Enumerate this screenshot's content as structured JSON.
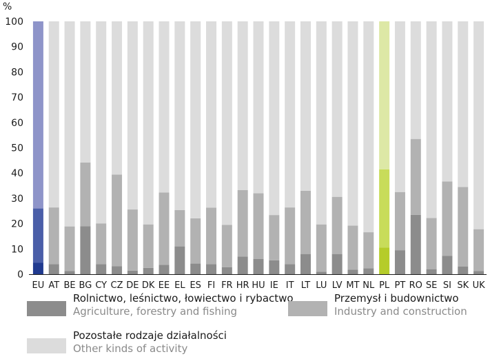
{
  "chart_data": {
    "type": "bar",
    "stacked": true,
    "unit_label": "%",
    "ylim": [
      0,
      100
    ],
    "yticks": [
      0,
      10,
      20,
      30,
      40,
      50,
      60,
      70,
      80,
      90,
      100
    ],
    "categories": [
      "EU",
      "AT",
      "BE",
      "BG",
      "CY",
      "CZ",
      "DE",
      "DK",
      "EE",
      "EL",
      "ES",
      "FI",
      "FR",
      "HR",
      "HU",
      "IE",
      "IT",
      "LT",
      "LU",
      "LV",
      "MT",
      "NL",
      "PL",
      "PT",
      "RO",
      "SE",
      "SI",
      "SK",
      "UK"
    ],
    "highlighted": [
      "EU",
      "PL"
    ],
    "series": [
      {
        "name": "Rolnictwo, leśnictwo, łowiectwo i rybactwo",
        "name_en": "Agriculture, forestry and fishing",
        "values": [
          4.5,
          4,
          1.3,
          19,
          4,
          3.2,
          1.4,
          2.5,
          3.7,
          11,
          4.2,
          4,
          2.8,
          7,
          6,
          5.5,
          4,
          8,
          1,
          8,
          1.8,
          2.3,
          10.5,
          9.5,
          23.5,
          2,
          7.3,
          3,
          1.3
        ]
      },
      {
        "name": "Przemysł i budownictwo",
        "name_en": "Industry and construction",
        "values": [
          21.5,
          22.4,
          17.6,
          25.2,
          16.1,
          36.2,
          24.2,
          17.2,
          28.6,
          14.4,
          17.9,
          22.3,
          16.7,
          26.3,
          26,
          17.9,
          22.4,
          25,
          18.7,
          22.6,
          17.4,
          14.3,
          31,
          23,
          30,
          20.2,
          29.4,
          31.5,
          16.5
        ]
      },
      {
        "name": "Pozostałe rodzaje działalności",
        "name_en": "Other kinds of activity",
        "values": [
          74,
          73.6,
          81.1,
          55.8,
          79.9,
          60.6,
          74.4,
          80.3,
          67.7,
          74.6,
          77.9,
          73.7,
          80.5,
          66.7,
          68,
          76.6,
          73.6,
          67,
          80.3,
          69.4,
          80.8,
          83.4,
          58.5,
          67.5,
          46.5,
          77.8,
          63.3,
          65.5,
          82.2
        ]
      }
    ],
    "colors": {
      "agri": "#8c8c8c",
      "industry": "#b2b2b2",
      "other": "#dcdcdc",
      "eu_agri": "#203a8f",
      "eu_industry": "#4a5ea8",
      "eu_other": "#8e94c9",
      "pl_agri": "#b5cc2a",
      "pl_industry": "#c8dc5a",
      "pl_other": "#dde8a6"
    },
    "legend": [
      {
        "key": "agri",
        "pl": "Rolnictwo, leśnictwo, łowiectwo i rybactwo",
        "en": "Agriculture, forestry and fishing"
      },
      {
        "key": "industry",
        "pl": "Przemysł i budownictwo",
        "en": "Industry and construction"
      },
      {
        "key": "other",
        "pl": "Pozostałe rodzaje działalności",
        "en": "Other kinds of activity"
      }
    ]
  }
}
